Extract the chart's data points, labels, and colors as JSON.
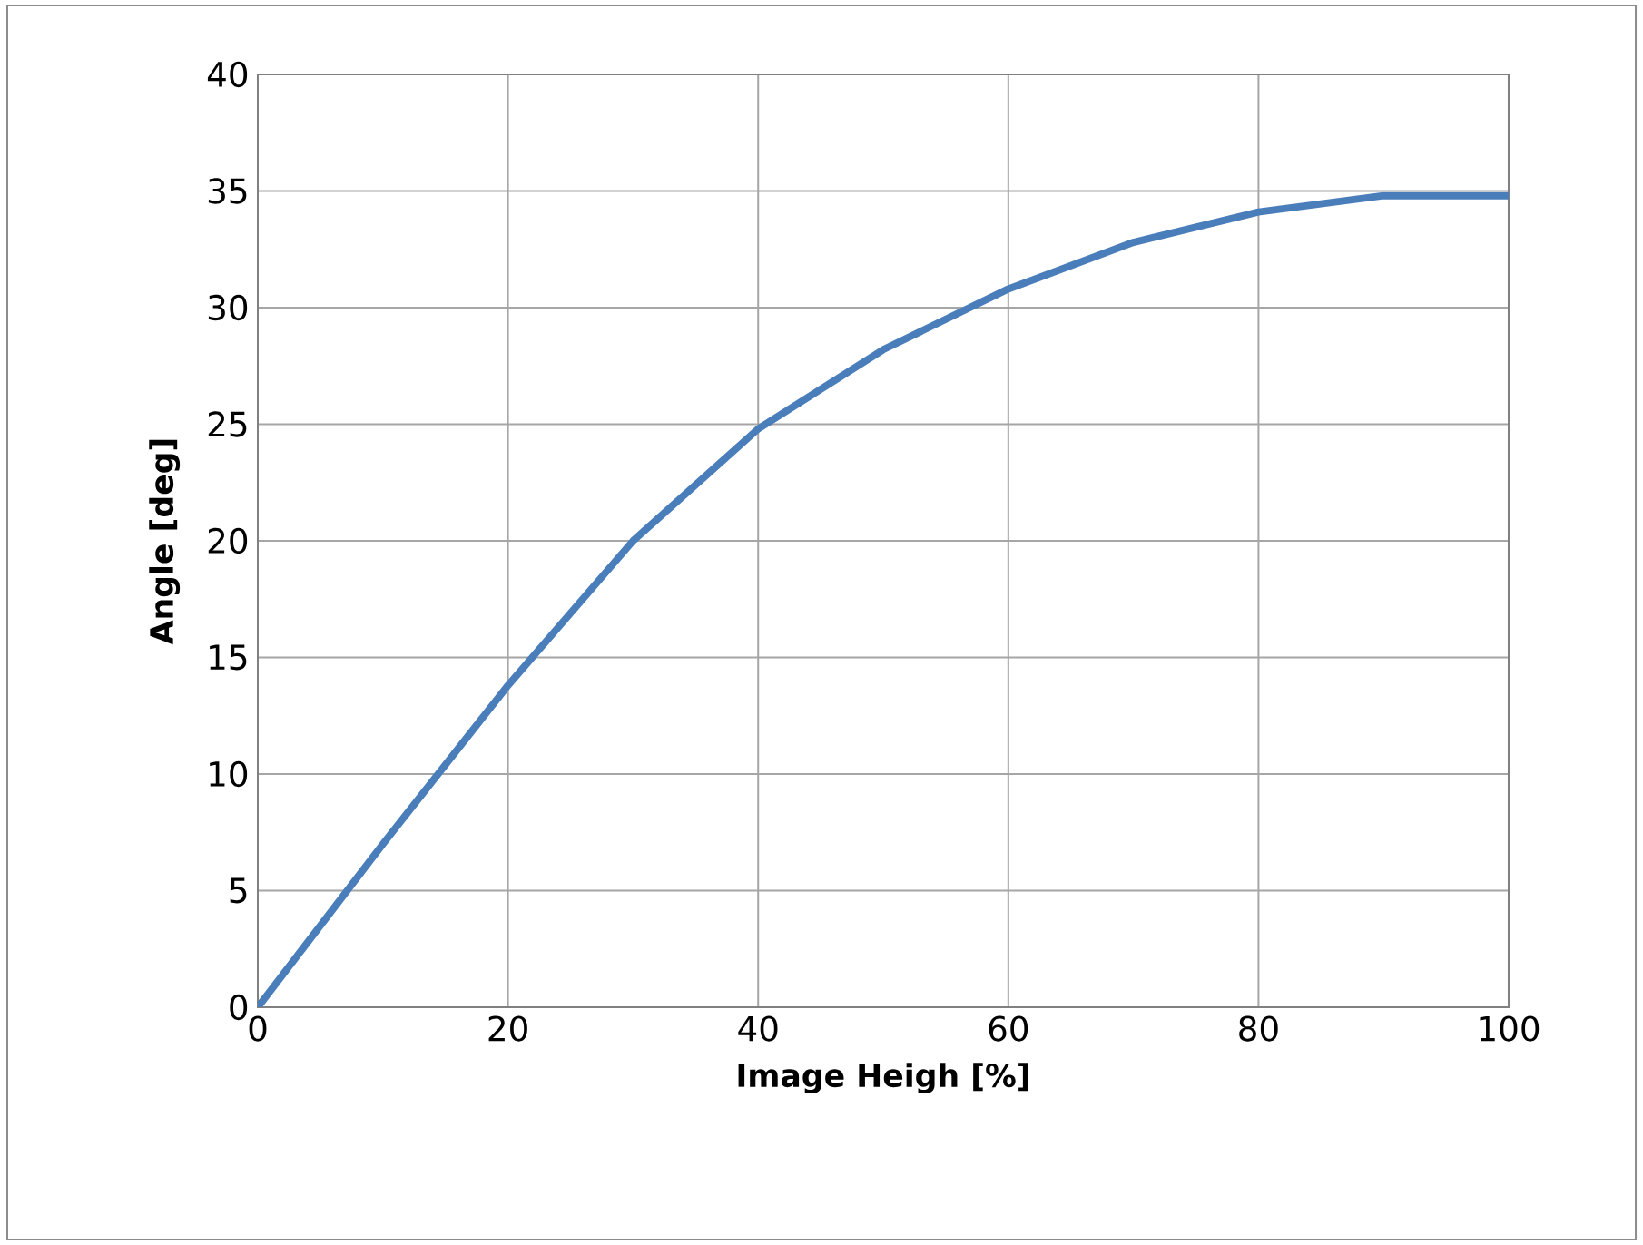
{
  "chart_data": {
    "type": "line",
    "xlabel": "Image Heigh [%]",
    "ylabel": "Angle [deg]",
    "x": [
      0,
      10,
      20,
      30,
      40,
      50,
      60,
      70,
      80,
      90,
      100
    ],
    "series": [
      {
        "color": "#4a7ebb",
        "values": [
          0,
          7.0,
          13.8,
          20.0,
          24.8,
          28.2,
          30.8,
          32.8,
          34.1,
          34.8,
          34.8
        ]
      }
    ],
    "xlim": [
      0,
      100
    ],
    "ylim": [
      0,
      40
    ],
    "xticks": [
      0,
      20,
      40,
      60,
      80,
      100
    ],
    "yticks": [
      0,
      5,
      10,
      15,
      20,
      25,
      30,
      35,
      40
    ],
    "grid": true,
    "marker": "none",
    "line_style": "solid"
  }
}
